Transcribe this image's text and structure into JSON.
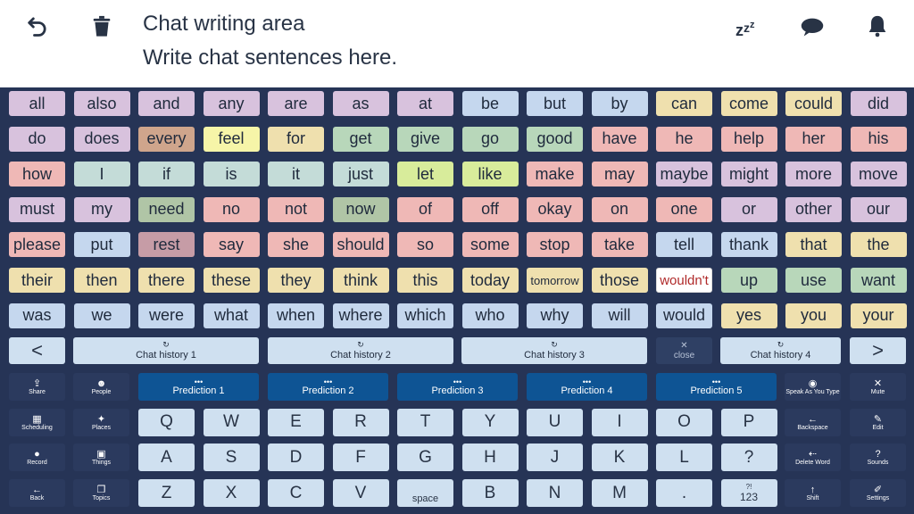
{
  "header": {
    "title": "Chat writing area",
    "subtitle": "Write chat sentences here.",
    "undo_icon": "undo-icon",
    "trash_icon": "trash-icon",
    "sleep_text": "zzz",
    "bubble_icon": "speech-bubble-icon",
    "bell_icon": "bell-icon"
  },
  "core_words": [
    [
      "all",
      "also",
      "and",
      "any",
      "are",
      "as",
      "at",
      "be",
      "but",
      "by",
      "can",
      "come",
      "could",
      "did"
    ],
    [
      "do",
      "does",
      "every",
      "feel",
      "for",
      "get",
      "give",
      "go",
      "good",
      "have",
      "he",
      "help",
      "her",
      "his"
    ],
    [
      "how",
      "I",
      "if",
      "is",
      "it",
      "just",
      "let",
      "like",
      "make",
      "may",
      "maybe",
      "might",
      "more",
      "move"
    ],
    [
      "must",
      "my",
      "need",
      "no",
      "not",
      "now",
      "of",
      "off",
      "okay",
      "on",
      "one",
      "or",
      "other",
      "our"
    ],
    [
      "please",
      "put",
      "rest",
      "say",
      "she",
      "should",
      "so",
      "some",
      "stop",
      "take",
      "tell",
      "thank",
      "that",
      "the"
    ],
    [
      "their",
      "then",
      "there",
      "these",
      "they",
      "think",
      "this",
      "today",
      "tomorrow",
      "those",
      "wouldn't",
      "up",
      "use",
      "want"
    ],
    [
      "was",
      "we",
      "were",
      "what",
      "when",
      "where",
      "which",
      "who",
      "why",
      "will",
      "would",
      "yes",
      "you",
      "your"
    ]
  ],
  "core_colors": [
    [
      "lav",
      "lav",
      "lav",
      "lav",
      "lav",
      "lav",
      "lav",
      "blu",
      "blu",
      "blu",
      "yel",
      "yel",
      "yel",
      "lav"
    ],
    [
      "lav",
      "lav",
      "tan",
      "lyl",
      "yel",
      "grn",
      "grn",
      "grn",
      "grn",
      "pnk",
      "pnk",
      "pnk",
      "pnk",
      "pnk"
    ],
    [
      "pnk",
      "teal",
      "teal",
      "teal",
      "teal",
      "teal",
      "ime",
      "ime",
      "pnk",
      "pnk",
      "lav",
      "lav",
      "lav",
      "lav"
    ],
    [
      "lav",
      "lav",
      "sag",
      "pnk",
      "pnk",
      "sag",
      "pnk",
      "pnk",
      "pnk",
      "pnk",
      "pnk",
      "lav",
      "lav",
      "lav"
    ],
    [
      "pnk",
      "blu",
      "rse",
      "pnk",
      "pnk",
      "pnk",
      "pnk",
      "pnk",
      "pnk",
      "pnk",
      "blu",
      "blu",
      "yel",
      "yel"
    ],
    [
      "yel",
      "yel",
      "yel",
      "yel",
      "yel",
      "yel",
      "yel",
      "yel",
      "yel",
      "yel",
      "wht",
      "grn",
      "grn",
      "grn"
    ],
    [
      "blu",
      "blu",
      "blu",
      "blu",
      "blu",
      "blu",
      "blu",
      "blu",
      "blu",
      "blu",
      "blu",
      "yel",
      "yel",
      "yel"
    ]
  ],
  "history": {
    "items": [
      "Chat history 1",
      "Chat history 2",
      "Chat history 3",
      "Chat history 4"
    ],
    "close_label": "close",
    "prev_glyph": "<",
    "next_glyph": ">",
    "history_glyph": "↻",
    "close_glyph": "✕"
  },
  "side_left": [
    {
      "label": "Share",
      "icon": "share-icon",
      "glyph": "⇪"
    },
    {
      "label": "Scheduling",
      "icon": "calendar-icon",
      "glyph": "▦"
    },
    {
      "label": "Record",
      "icon": "microphone-icon",
      "glyph": "●"
    },
    {
      "label": "Back",
      "icon": "back-arrow-icon",
      "glyph": "←"
    }
  ],
  "side_left2": [
    {
      "label": "People",
      "icon": "people-icon",
      "glyph": "☻"
    },
    {
      "label": "Places",
      "icon": "walking-person-icon",
      "glyph": "✦"
    },
    {
      "label": "Things",
      "icon": "bag-icon",
      "glyph": "▣"
    },
    {
      "label": "Topics",
      "icon": "topics-icon",
      "glyph": "❐"
    }
  ],
  "side_right1": [
    {
      "label": "Speak As You Type",
      "icon": "speak-icon",
      "glyph": "◉"
    },
    {
      "label": "Backspace",
      "icon": "backspace-icon",
      "glyph": "←"
    },
    {
      "label": "Delete Word",
      "icon": "delete-word-icon",
      "glyph": "⇠"
    },
    {
      "label": "Shift",
      "icon": "shift-icon",
      "glyph": "↑"
    }
  ],
  "side_right2": [
    {
      "label": "Mute",
      "icon": "mute-icon",
      "glyph": "✕"
    },
    {
      "label": "Edit",
      "icon": "pencil-icon",
      "glyph": "✎"
    },
    {
      "label": "Sounds",
      "icon": "question-icon",
      "glyph": "?"
    },
    {
      "label": "Settings",
      "icon": "wrench-icon",
      "glyph": "✐"
    }
  ],
  "predictions": [
    "Prediction 1",
    "Prediction 2",
    "Prediction 3",
    "Prediction 4",
    "Prediction 5"
  ],
  "prediction_glyph": "•••",
  "keyboard": [
    [
      "Q",
      "W",
      "E",
      "R",
      "T",
      "Y",
      "U",
      "I",
      "O",
      "P"
    ],
    [
      "A",
      "S",
      "D",
      "F",
      "G",
      "H",
      "J",
      "K",
      "L",
      "?"
    ],
    [
      "Z",
      "X",
      "C",
      "V",
      "space",
      "B",
      "N",
      "M",
      "."
    ]
  ],
  "num_key": {
    "top": "?!",
    "label": "123"
  }
}
